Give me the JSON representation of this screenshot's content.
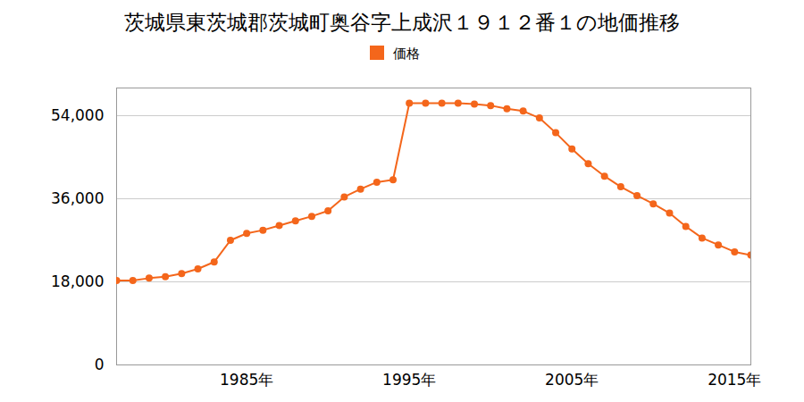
{
  "chart_data": {
    "type": "line",
    "title": "茨城県東茨城郡茨城町奥谷字上成沢１９１２番１の地価推移",
    "x": [
      1977,
      1978,
      1979,
      1980,
      1981,
      1982,
      1983,
      1984,
      1985,
      1986,
      1987,
      1988,
      1989,
      1990,
      1991,
      1992,
      1993,
      1994,
      1995,
      1996,
      1997,
      1998,
      1999,
      2000,
      2001,
      2002,
      2003,
      2004,
      2005,
      2006,
      2007,
      2008,
      2009,
      2010,
      2011,
      2012,
      2013,
      2014,
      2015,
      2016
    ],
    "series": [
      {
        "name": "価格",
        "color": "#f4661b",
        "marker": "circle",
        "values": [
          18300,
          18300,
          18800,
          19100,
          19800,
          20800,
          22300,
          27000,
          28500,
          29200,
          30200,
          31200,
          32200,
          33400,
          36400,
          38100,
          39600,
          40100,
          56700,
          56700,
          56700,
          56700,
          56500,
          56200,
          55500,
          55000,
          53500,
          50300,
          46800,
          43600,
          40900,
          38600,
          36700,
          34900,
          32900,
          30000,
          27500,
          26000,
          24500,
          23800
        ]
      }
    ],
    "xlim": [
      1977,
      2016
    ],
    "xticks": [
      {
        "value": 1985,
        "label": "1985年"
      },
      {
        "value": 1995,
        "label": "1995年"
      },
      {
        "value": 2005,
        "label": "2005年"
      },
      {
        "value": 2015,
        "label": "2015年"
      }
    ],
    "ylim": [
      0,
      60000
    ],
    "yticks": [
      0,
      {
        "value": 18000,
        "label": "18,000"
      },
      {
        "value": 36000,
        "label": "36,000"
      },
      {
        "value": 54000,
        "label": "54,000"
      }
    ],
    "grid": true,
    "legend": "top"
  }
}
